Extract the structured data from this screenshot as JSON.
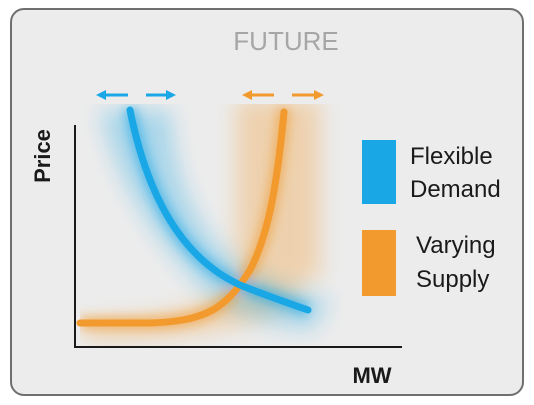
{
  "title": "FUTURE",
  "axes": {
    "y_label": "Price",
    "x_label": "MW"
  },
  "legend": [
    {
      "line1": "Flexible",
      "line2": "Demand",
      "color": "#1aa7e6"
    },
    {
      "line1": "Varying",
      "line2": "Supply",
      "color": "#f29a2e"
    }
  ],
  "colors": {
    "demand": "#1aa7e6",
    "supply": "#f29a2e",
    "axis": "#1a1a1a",
    "panel_bg": "#ececec",
    "panel_border": "#6f6f6f",
    "title": "#a6a6a6"
  },
  "icons": {
    "demand_range": "double-arrow-dashed-icon",
    "supply_range": "double-arrow-dashed-icon"
  }
}
